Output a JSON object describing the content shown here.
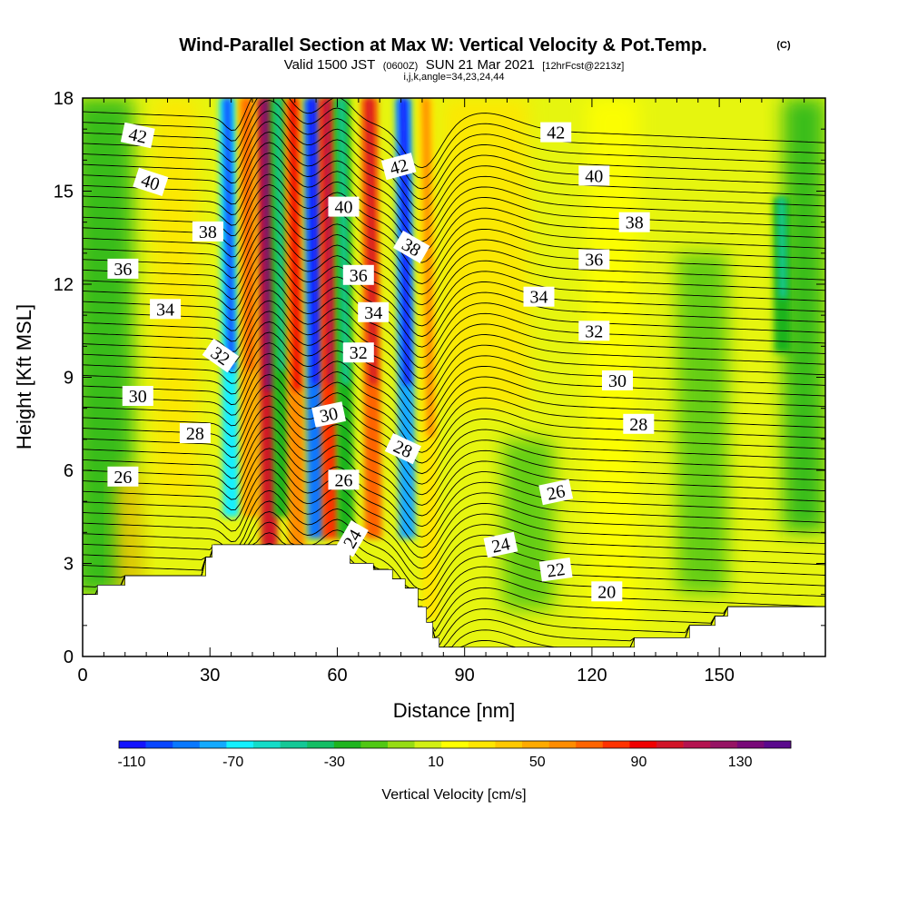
{
  "header": {
    "title": "Wind-Parallel Section at Max W: Vertical Velocity & Pot.Temp.",
    "copyright": "(C)",
    "valid_prefix": "Valid 1500 JST",
    "valid_utc": "(0600Z)",
    "valid_date": "SUN 21 Mar 2021",
    "forecast": "[12hrFcst@2213z]",
    "indices": "i,j,k,angle=34,23,24,44"
  },
  "chart_data": {
    "type": "heatmap",
    "xlabel": "Distance [nm]",
    "ylabel": "Height [Kft MSL]",
    "xlim": [
      0,
      175
    ],
    "ylim": [
      0,
      18
    ],
    "x_ticks": [
      0,
      30,
      60,
      90,
      120,
      150
    ],
    "y_ticks": [
      0,
      3,
      6,
      9,
      12,
      15,
      18
    ],
    "colorbar": {
      "label": "Vertical Velocity [cm/s]",
      "range": [
        -115,
        150
      ],
      "tick_values": [
        -110,
        -70,
        -30,
        10,
        50,
        90,
        130
      ],
      "colors": [
        "#1414ff",
        "#0a46ff",
        "#0a78ff",
        "#14aaff",
        "#14f0ff",
        "#14dcc8",
        "#14c896",
        "#14be64",
        "#1eb41e",
        "#50c814",
        "#96dc14",
        "#d2f014",
        "#ffff00",
        "#ffe600",
        "#ffc800",
        "#ffaa00",
        "#ff8c00",
        "#ff6400",
        "#ff3200",
        "#f00000",
        "#d21428",
        "#b41450",
        "#961464",
        "#780a78",
        "#5a0a8c"
      ]
    },
    "velocity_field": {
      "units": "cm/s",
      "background": 10,
      "updrafts_and_downdrafts": [
        {
          "x": 35,
          "y_range": [
            4.5,
            18
          ],
          "value": -70
        },
        {
          "x": 39.5,
          "y_range": [
            4.5,
            18
          ],
          "value": 45
        },
        {
          "x": 44,
          "y_range": [
            3.5,
            18
          ],
          "value": 100
        },
        {
          "x": 47,
          "y_range": [
            4.5,
            18
          ],
          "value": -25
        },
        {
          "x": 50.5,
          "y_range": [
            3.5,
            18
          ],
          "value": 60
        },
        {
          "x": 55,
          "y_range": [
            3.8,
            18
          ],
          "value": -85
        },
        {
          "x": 58.5,
          "y_range": [
            3.8,
            18
          ],
          "value": 80
        },
        {
          "x": 62,
          "y_range": [
            3.8,
            18
          ],
          "value": -20
        },
        {
          "x": 68.5,
          "y_range": [
            3.8,
            18
          ],
          "value": 70
        },
        {
          "x": 76.5,
          "y_range": [
            3.8,
            18
          ],
          "value": -80
        },
        {
          "x": 82,
          "y_range": [
            1.2,
            18
          ],
          "value": 30
        },
        {
          "x": 165,
          "y_range": [
            9.8,
            14.8
          ],
          "value": -20
        }
      ]
    },
    "potential_temperature_contours": {
      "units": "K",
      "labels": [
        {
          "value": 42,
          "x": 13,
          "y": 16.8,
          "angle": 12
        },
        {
          "value": 40,
          "x": 16,
          "y": 15.3,
          "angle": 18
        },
        {
          "value": 38,
          "x": 29.5,
          "y": 13.7,
          "angle": 0
        },
        {
          "value": 36,
          "x": 9.5,
          "y": 12.5,
          "angle": 0
        },
        {
          "value": 34,
          "x": 19.5,
          "y": 11.2,
          "angle": 0
        },
        {
          "value": 32,
          "x": 32.5,
          "y": 9.7,
          "angle": 35
        },
        {
          "value": 30,
          "x": 13,
          "y": 8.4,
          "angle": 0
        },
        {
          "value": 28,
          "x": 26.5,
          "y": 7.2,
          "angle": 0
        },
        {
          "value": 26,
          "x": 9.5,
          "y": 5.8,
          "angle": 0
        },
        {
          "value": 40,
          "x": 61.5,
          "y": 14.5,
          "angle": 0
        },
        {
          "value": 36,
          "x": 65,
          "y": 12.3,
          "angle": 0
        },
        {
          "value": 34,
          "x": 68.5,
          "y": 11.1,
          "angle": 0
        },
        {
          "value": 32,
          "x": 65,
          "y": 9.8,
          "angle": 0
        },
        {
          "value": 30,
          "x": 58,
          "y": 7.8,
          "angle": -12
        },
        {
          "value": 26,
          "x": 61.5,
          "y": 5.7,
          "angle": 0
        },
        {
          "value": 24,
          "x": 63.5,
          "y": 3.8,
          "angle": -60
        },
        {
          "value": 42,
          "x": 74.5,
          "y": 15.8,
          "angle": -15
        },
        {
          "value": 38,
          "x": 77.5,
          "y": 13.2,
          "angle": 30
        },
        {
          "value": 28,
          "x": 75.5,
          "y": 6.7,
          "angle": 25
        },
        {
          "value": 42,
          "x": 111.5,
          "y": 16.9,
          "angle": 0
        },
        {
          "value": 40,
          "x": 120.5,
          "y": 15.5,
          "angle": 0
        },
        {
          "value": 38,
          "x": 130,
          "y": 14.0,
          "angle": 0
        },
        {
          "value": 36,
          "x": 120.5,
          "y": 12.8,
          "angle": 0
        },
        {
          "value": 34,
          "x": 107.5,
          "y": 11.6,
          "angle": 0
        },
        {
          "value": 32,
          "x": 120.5,
          "y": 10.5,
          "angle": 0
        },
        {
          "value": 30,
          "x": 126,
          "y": 8.9,
          "angle": 0
        },
        {
          "value": 28,
          "x": 131,
          "y": 7.5,
          "angle": 0
        },
        {
          "value": 26,
          "x": 111.5,
          "y": 5.3,
          "angle": -12
        },
        {
          "value": 24,
          "x": 98.5,
          "y": 3.6,
          "angle": -12
        },
        {
          "value": 22,
          "x": 111.5,
          "y": 2.8,
          "angle": -8
        },
        {
          "value": 20,
          "x": 123.5,
          "y": 2.1,
          "angle": 0
        }
      ]
    },
    "terrain_profile": {
      "units": "Kft MSL",
      "points": [
        [
          0,
          2
        ],
        [
          3.5,
          2
        ],
        [
          3.5,
          2.3
        ],
        [
          10,
          2.3
        ],
        [
          10,
          2.6
        ],
        [
          29,
          2.6
        ],
        [
          29,
          3.2
        ],
        [
          30.5,
          3.2
        ],
        [
          30.5,
          3.6
        ],
        [
          63,
          3.6
        ],
        [
          63,
          3.0
        ],
        [
          68.5,
          3.0
        ],
        [
          68.5,
          2.8
        ],
        [
          73,
          2.8
        ],
        [
          73,
          2.5
        ],
        [
          76,
          2.5
        ],
        [
          76,
          2.2
        ],
        [
          79,
          2.2
        ],
        [
          79,
          1.6
        ],
        [
          81,
          1.6
        ],
        [
          81,
          1.1
        ],
        [
          82.5,
          1.1
        ],
        [
          82.5,
          0.6
        ],
        [
          84,
          0.6
        ],
        [
          84,
          0.3
        ],
        [
          130,
          0.3
        ],
        [
          130,
          0.6
        ],
        [
          143,
          0.6
        ],
        [
          143,
          1.0
        ],
        [
          149,
          1.0
        ],
        [
          149,
          1.3
        ],
        [
          152,
          1.3
        ],
        [
          152,
          1.6
        ],
        [
          175,
          1.6
        ]
      ]
    }
  }
}
